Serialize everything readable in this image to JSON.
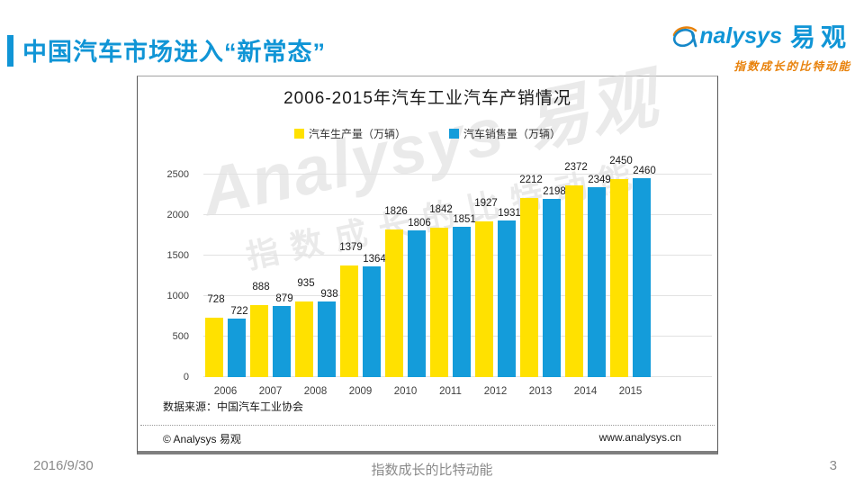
{
  "theme": {
    "accent_blue": "#1095D6",
    "logo_orange": "#E8820C",
    "bar_yellow": "#FFE100",
    "bar_blue": "#149CDA"
  },
  "header": {
    "title": "中国汽车市场进入“新常态”"
  },
  "logo": {
    "brand_rest": "nalysys",
    "brand_cn": "易观",
    "tagline": "指数成长的比特动能"
  },
  "watermark": {
    "line1": "Analysys 易观",
    "line2": "指数成长的比特动能"
  },
  "chart_data": {
    "type": "bar",
    "title": "2006-2015年汽车工业汽车产销情况",
    "categories": [
      "2006",
      "2007",
      "2008",
      "2009",
      "2010",
      "2011",
      "2012",
      "2013",
      "2014",
      "2015"
    ],
    "series": [
      {
        "name": "汽车生产量（万辆）",
        "color": "#FFE100",
        "values": [
          728,
          888,
          935,
          1379,
          1826,
          1842,
          1927,
          2212,
          2372,
          2450
        ]
      },
      {
        "name": "汽车销售量（万辆）",
        "color": "#149CDA",
        "values": [
          722,
          879,
          938,
          1364,
          1806,
          1851,
          1931,
          2198,
          2349,
          2460
        ]
      }
    ],
    "ylim": [
      0,
      2500
    ],
    "yticks": [
      0,
      500,
      1000,
      1500,
      2000,
      2500
    ],
    "grid": true,
    "legend_position": "top"
  },
  "chart_box": {
    "source": "数据来源：中国汽车工业协会",
    "copyright": "© Analysys 易观",
    "website": "www.analysys.cn"
  },
  "slide_footer": {
    "date": "2016/9/30",
    "tagline": "指数成长的比特动能",
    "page": "3"
  }
}
